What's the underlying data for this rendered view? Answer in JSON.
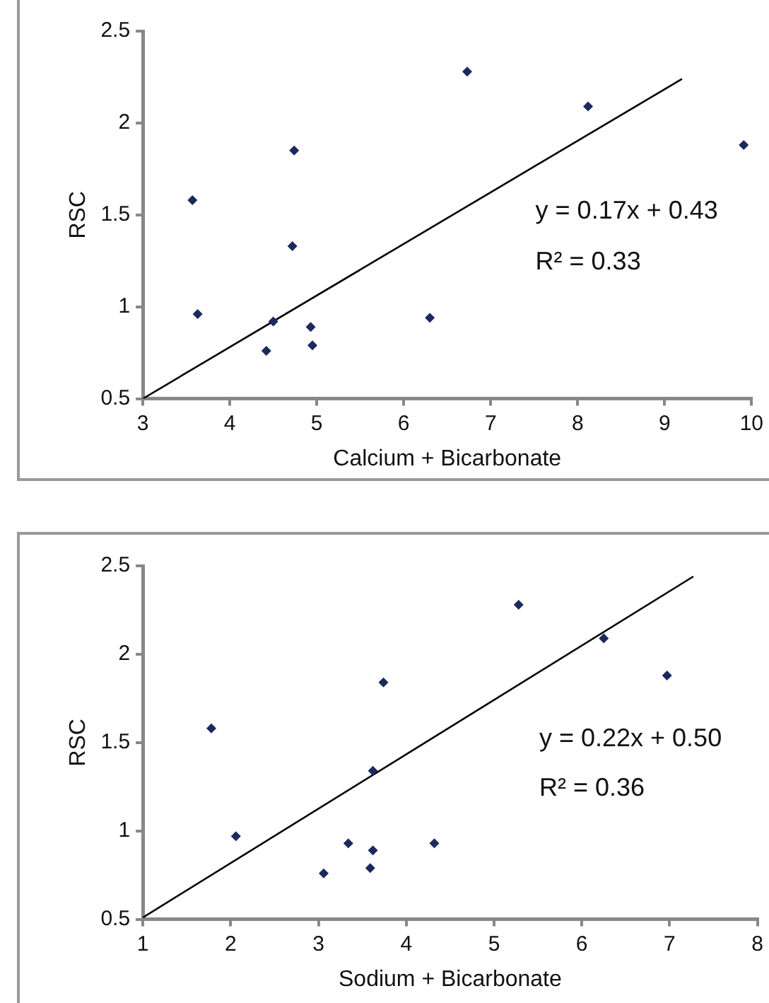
{
  "chart_data": [
    {
      "type": "scatter",
      "xlabel": "Calcium + Bicarbonate",
      "ylabel": "RSC",
      "xlim": [
        3,
        10
      ],
      "xticks": [
        3,
        4,
        5,
        6,
        7,
        8,
        9,
        10
      ],
      "ylim": [
        0.5,
        2.5
      ],
      "yticks": [
        0.5,
        1,
        1.5,
        2,
        2.5
      ],
      "grid": false,
      "legend": false,
      "annotations": [
        "y = 0.17x + 0.43",
        "R² = 0.33"
      ],
      "series": [
        {
          "marker": "diamond",
          "color": "#1a2a5a",
          "x": [
            3.57,
            3.63,
            4.5,
            4.42,
            4.72,
            4.74,
            4.93,
            4.95,
            6.3,
            6.73,
            8.12,
            9.91
          ],
          "values": [
            1.58,
            0.96,
            0.92,
            0.76,
            1.33,
            1.85,
            0.89,
            0.79,
            0.94,
            2.28,
            2.09,
            1.88
          ]
        },
        {
          "type": "line",
          "marker": "none",
          "color": "#000000",
          "x": [
            3,
            9.2
          ],
          "values": [
            0.5,
            2.24
          ]
        }
      ]
    },
    {
      "type": "scatter",
      "xlabel": "Sodium + Bicarbonate",
      "ylabel": "RSC",
      "xlim": [
        1,
        8
      ],
      "xticks": [
        1,
        2,
        3,
        4,
        5,
        6,
        7,
        8
      ],
      "ylim": [
        0.5,
        2.5
      ],
      "yticks": [
        0.5,
        1,
        1.5,
        2,
        2.5
      ],
      "grid": false,
      "legend": false,
      "annotations": [
        "y = 0.22x + 0.50",
        "R² = 0.36"
      ],
      "series": [
        {
          "marker": "diamond",
          "color": "#1a2a5a",
          "x": [
            1.78,
            2.06,
            3.06,
            3.34,
            3.59,
            3.62,
            3.62,
            3.74,
            4.32,
            5.28,
            6.25,
            6.97
          ],
          "values": [
            1.58,
            0.97,
            0.76,
            0.93,
            0.79,
            0.89,
            1.34,
            1.84,
            0.93,
            2.28,
            2.09,
            1.88
          ]
        },
        {
          "type": "line",
          "marker": "none",
          "color": "#000000",
          "x": [
            1,
            7.27
          ],
          "values": [
            0.51,
            2.44
          ]
        }
      ]
    }
  ]
}
